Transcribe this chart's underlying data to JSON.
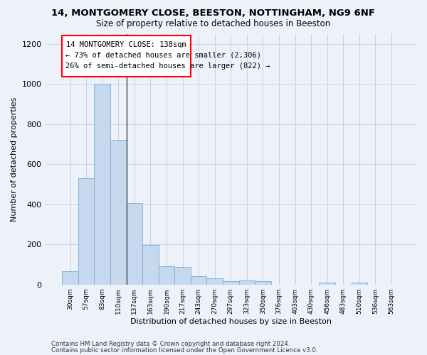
{
  "title_line1": "14, MONTGOMERY CLOSE, BEESTON, NOTTINGHAM, NG9 6NF",
  "title_line2": "Size of property relative to detached houses in Beeston",
  "xlabel": "Distribution of detached houses by size in Beeston",
  "ylabel": "Number of detached properties",
  "footer_line1": "Contains HM Land Registry data © Crown copyright and database right 2024.",
  "footer_line2": "Contains public sector information licensed under the Open Government Licence v3.0.",
  "annotation_line1": "14 MONTGOMERY CLOSE: 138sqm",
  "annotation_line2": "← 73% of detached houses are smaller (2,306)",
  "annotation_line3": "26% of semi-detached houses are larger (822) →",
  "bar_color": "#c5d8ed",
  "bar_edge_color": "#7aadd4",
  "categories": [
    "30sqm",
    "57sqm",
    "83sqm",
    "110sqm",
    "137sqm",
    "163sqm",
    "190sqm",
    "217sqm",
    "243sqm",
    "270sqm",
    "297sqm",
    "323sqm",
    "350sqm",
    "376sqm",
    "403sqm",
    "430sqm",
    "456sqm",
    "483sqm",
    "510sqm",
    "536sqm",
    "563sqm"
  ],
  "values": [
    65,
    530,
    1000,
    720,
    405,
    197,
    90,
    88,
    40,
    32,
    17,
    20,
    18,
    0,
    0,
    0,
    10,
    0,
    9,
    0,
    0
  ],
  "vline_x": 3.5,
  "ylim": [
    0,
    1250
  ],
  "yticks": [
    0,
    200,
    400,
    600,
    800,
    1000,
    1200
  ],
  "background_color": "#edf2fa",
  "grid_color": "#c8d0e0",
  "vline_color": "#444444"
}
